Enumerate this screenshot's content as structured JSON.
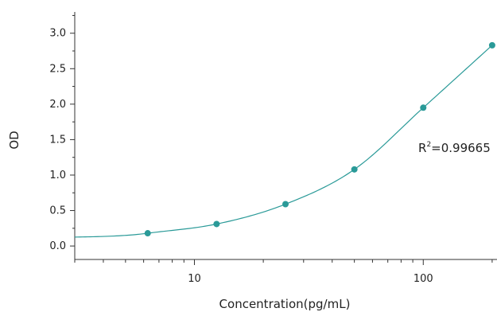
{
  "chart_data": {
    "type": "scatter",
    "title": "",
    "xlabel": "Concentration(pg/mL)",
    "ylabel": "OD",
    "x_scale": "log",
    "xlim": [
      3,
      210
    ],
    "ylim": [
      -0.1,
      3.3
    ],
    "x_ticks": [
      {
        "value": 10,
        "label": "10"
      },
      {
        "value": 100,
        "label": "100"
      }
    ],
    "y_ticks": [
      {
        "value": 0.0,
        "label": "0.0"
      },
      {
        "value": 0.5,
        "label": "0.5"
      },
      {
        "value": 1.0,
        "label": "1.0"
      },
      {
        "value": 1.5,
        "label": "1.5"
      },
      {
        "value": 2.0,
        "label": "2.0"
      },
      {
        "value": 2.5,
        "label": "2.5"
      },
      {
        "value": 3.0,
        "label": "3.0"
      }
    ],
    "grid": false,
    "series": [
      {
        "points": [
          {
            "x": 6.25,
            "y": 0.18
          },
          {
            "x": 12.5,
            "y": 0.31
          },
          {
            "x": 25,
            "y": 0.59
          },
          {
            "x": 50,
            "y": 1.08
          },
          {
            "x": 100,
            "y": 1.95
          },
          {
            "x": 200,
            "y": 2.83
          }
        ],
        "color": "#2a9a98",
        "fit_curve": true
      }
    ],
    "annotation": {
      "base": "R",
      "sup": "2",
      "text": "=0.99665"
    }
  }
}
